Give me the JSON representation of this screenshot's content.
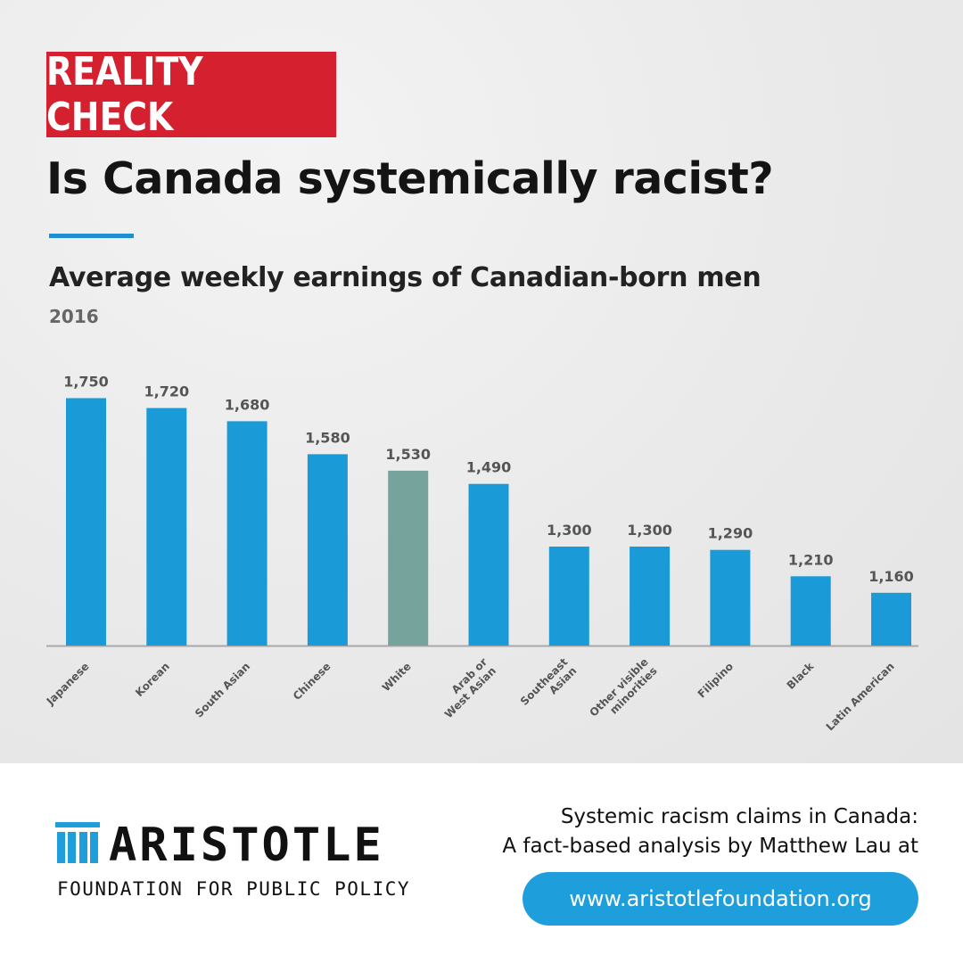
{
  "badge": "REALITY CHECK",
  "headline": "Is Canada systemically racist?",
  "colors": {
    "badge_red": "#d5202f",
    "bar_blue": "#1a9ad6",
    "bar_highlight": "#76a39b",
    "accent_blue": "#1e8fd3"
  },
  "chart_data": {
    "type": "bar",
    "title": "Average weekly earnings of Canadian-born men",
    "subtitle": "2016",
    "categories": [
      "Japanese",
      "Korean",
      "South Asian",
      "Chinese",
      "White",
      "Arab or West Asian",
      "Southeast Asian",
      "Other visible minorities",
      "Filipino",
      "Black",
      "Latin American"
    ],
    "category_lines": [
      [
        "Japanese"
      ],
      [
        "Korean"
      ],
      [
        "South Asian"
      ],
      [
        "Chinese"
      ],
      [
        "White"
      ],
      [
        "Arab or",
        "West Asian"
      ],
      [
        "Southeast",
        "Asian"
      ],
      [
        "Other visible",
        "minorities"
      ],
      [
        "Filipino"
      ],
      [
        "Black"
      ],
      [
        "Latin American"
      ]
    ],
    "values": [
      1750,
      1720,
      1680,
      1580,
      1530,
      1490,
      1300,
      1300,
      1290,
      1210,
      1160
    ],
    "value_labels": [
      "1,750",
      "1,720",
      "1,680",
      "1,580",
      "1,530",
      "1,490",
      "1,300",
      "1,300",
      "1,290",
      "1,210",
      "1,160"
    ],
    "highlight": "White",
    "baseline": 1000,
    "grid": false
  },
  "footer": {
    "logo_name": "ARISTOTLE",
    "logo_tagline": "FOUNDATION FOR PUBLIC POLICY",
    "promo_line1": "Systemic racism claims in Canada:",
    "promo_line2": "A fact-based analysis by Matthew Lau at",
    "url": "www.aristotlefoundation.org"
  }
}
